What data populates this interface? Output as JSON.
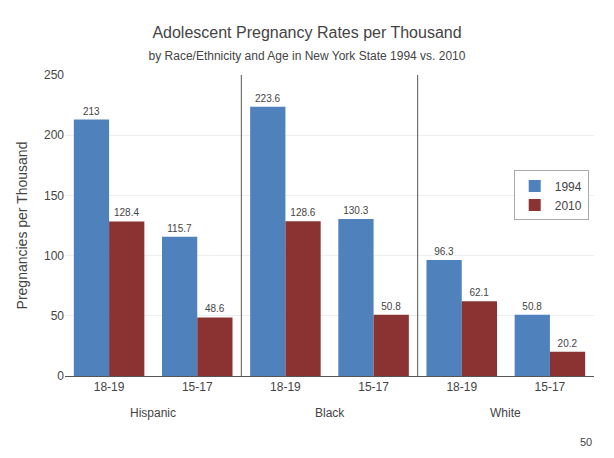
{
  "chart_data": {
    "type": "bar",
    "title": "Adolescent Pregnancy Rates per Thousand",
    "subtitle": "by Race/Ethnicity and Age in New York State 1994 vs. 2010",
    "ylabel": "Pregnancies per Thousand",
    "categories": [
      "18-19",
      "15-17",
      "18-19",
      "15-17",
      "18-19",
      "15-17"
    ],
    "groups": [
      "Hispanic",
      "Black",
      "White"
    ],
    "page_number": "50",
    "series": [
      {
        "name": "1994",
        "color": "#4F81BD",
        "values": [
          213,
          115.7,
          223.6,
          130.3,
          96.3,
          50.8
        ]
      },
      {
        "name": "2010",
        "color": "#8B3333",
        "values": [
          128.4,
          48.6,
          128.6,
          50.8,
          62.1,
          20.2
        ]
      }
    ],
    "ylim": [
      0,
      250
    ],
    "yticks": [
      0,
      50,
      100,
      150,
      200,
      250
    ],
    "grid": true,
    "legend": "right",
    "data_labels": true
  }
}
